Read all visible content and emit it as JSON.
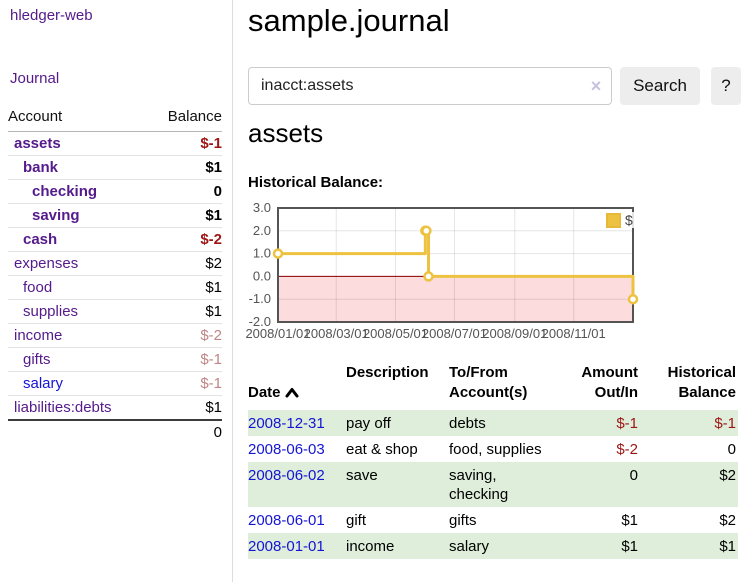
{
  "app": {
    "brand": "hledger-web"
  },
  "sidebar": {
    "nav_journal": "Journal",
    "accounts_header": {
      "account": "Account",
      "balance": "Balance"
    },
    "accounts": [
      {
        "name": "assets",
        "balance": "$-1",
        "name_class": "acct d1 strong",
        "bal_class": "bal strong neg"
      },
      {
        "name": "bank",
        "balance": "$1",
        "name_class": "acct d2 strong",
        "bal_class": "bal strong"
      },
      {
        "name": "checking",
        "balance": "0",
        "name_class": "acct d3 strong",
        "bal_class": "bal strong"
      },
      {
        "name": "saving",
        "balance": "$1",
        "name_class": "acct d3 strong",
        "bal_class": "bal strong"
      },
      {
        "name": "cash",
        "balance": "$-2",
        "name_class": "acct d2 strong",
        "bal_class": "bal strong neg"
      },
      {
        "name": "expenses",
        "balance": "$2",
        "name_class": "acct d1",
        "bal_class": "bal"
      },
      {
        "name": "food",
        "balance": "$1",
        "name_class": "acct d2",
        "bal_class": "bal"
      },
      {
        "name": "supplies",
        "balance": "$1",
        "name_class": "acct d2",
        "bal_class": "bal"
      },
      {
        "name": "income",
        "balance": "$-2",
        "name_class": "acct d1",
        "bal_class": "bal negm"
      },
      {
        "name": "gifts",
        "balance": "$-1",
        "name_class": "acct d2",
        "bal_class": "bal negm"
      },
      {
        "name": "salary",
        "balance": "$-1",
        "name_class": "acct d2 blue",
        "bal_class": "bal negm"
      },
      {
        "name": "liabilities:debts",
        "balance": "$1",
        "name_class": "acct d1",
        "bal_class": "bal"
      }
    ],
    "total": "0"
  },
  "header": {
    "title": "sample.journal"
  },
  "search": {
    "value": "inacct:assets",
    "clear_icon": "×",
    "search_label": "Search",
    "help_label": "?"
  },
  "account_view": {
    "heading": "assets",
    "chart_title": "Historical Balance:"
  },
  "chart_data": {
    "type": "line",
    "step": true,
    "title": "Historical Balance:",
    "legend_position": "top-right",
    "ylim": [
      -2.0,
      3.0
    ],
    "yticks": [
      3.0,
      2.0,
      1.0,
      0.0,
      -1.0,
      -2.0
    ],
    "xticks": [
      {
        "label": "2008/01/01",
        "xf": 0.0
      },
      {
        "label": "2008/03/01",
        "xf": 0.164
      },
      {
        "label": "2008/05/01",
        "xf": 0.331
      },
      {
        "label": "2008/07/01",
        "xf": 0.497
      },
      {
        "label": "2008/09/01",
        "xf": 0.667
      },
      {
        "label": "2008/11/01",
        "xf": 0.833
      }
    ],
    "series": [
      {
        "name": "$",
        "color": "#edc240",
        "points": [
          {
            "date": "2008-01-01",
            "value": 1,
            "xf": 0.0
          },
          {
            "date": "2008-06-01",
            "value": 2,
            "xf": 0.415
          },
          {
            "date": "2008-06-02",
            "value": 2,
            "xf": 0.418
          },
          {
            "date": "2008-06-03",
            "value": 0,
            "xf": 0.424
          },
          {
            "date": "2008-12-31",
            "value": -1,
            "xf": 1.0
          }
        ]
      }
    ],
    "negative_region_color": "#fcdcdc",
    "zero_line_color": "#8b0000",
    "border_color": "#545454",
    "grid": true
  },
  "register": {
    "headers": {
      "date": "Date",
      "description": "Description",
      "accounts": "To/From\nAccount(s)",
      "amount": "Amount\nOut/In",
      "historical": "Historical\nBalance"
    },
    "rows": [
      {
        "date": "2008-12-31",
        "description": "pay off",
        "accounts": "debts",
        "amount": "$-1",
        "amount_class": "neg",
        "balance": "$-1",
        "balance_class": "neg"
      },
      {
        "date": "2008-06-03",
        "description": "eat & shop",
        "accounts": "food, supplies",
        "amount": "$-2",
        "amount_class": "neg",
        "balance": "0",
        "balance_class": ""
      },
      {
        "date": "2008-06-02",
        "description": "save",
        "accounts": "saving,\nchecking",
        "amount": "0",
        "amount_class": "",
        "balance": "$2",
        "balance_class": ""
      },
      {
        "date": "2008-06-01",
        "description": "gift",
        "accounts": "gifts",
        "amount": "$1",
        "amount_class": "",
        "balance": "$2",
        "balance_class": ""
      },
      {
        "date": "2008-01-01",
        "description": "income",
        "accounts": "salary",
        "amount": "$1",
        "amount_class": "",
        "balance": "$1",
        "balance_class": ""
      }
    ]
  }
}
